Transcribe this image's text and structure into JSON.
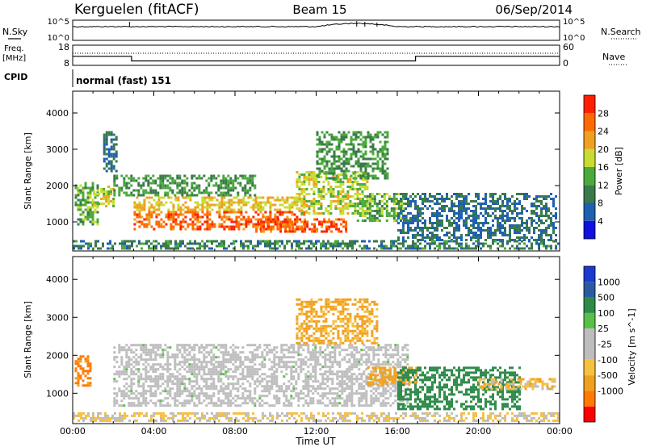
{
  "header": {
    "station": "Kerguelen (fitACF)",
    "beam": "Beam 15",
    "date": "06/Sep/2014"
  },
  "noise_panel": {
    "left_label": "N.Sky",
    "right_label": "N.Search",
    "tick_top": "10^5",
    "tick_bottom": "10^0"
  },
  "freq_panel": {
    "left_label_1": "Freq.",
    "left_label_2": "[MHz]",
    "left_tick_top": "18",
    "left_tick_bottom": "8",
    "right_label": "Nave",
    "right_tick_top": "60",
    "right_tick_bottom": "0"
  },
  "cpid": {
    "label": "CPID",
    "value": "normal (fast) 151"
  },
  "colors": {
    "power_scale": [
      "#1010e0",
      "#2060b0",
      "#3a7a4a",
      "#4caa3c",
      "#c8dc32",
      "#f0a020",
      "#ff6a00",
      "#ff2000"
    ],
    "velocity_scale": [
      "#ff0000",
      "#ff7a00",
      "#f0a020",
      "#f6c040",
      "#bdbdbd",
      "#bdbdbd",
      "#58c048",
      "#2f8a4a",
      "#2a5aa0",
      "#1a3ad0"
    ],
    "ground_scatter": "#bdbdbd"
  },
  "chart_data": [
    {
      "type": "heatmap",
      "name": "power",
      "xlabel": "",
      "ylabel": "Slant Range [km]",
      "xlim": [
        0,
        24
      ],
      "ylim": [
        200,
        4600
      ],
      "yticks": [
        "1000",
        "2000",
        "3000",
        "4000"
      ],
      "colorbar": {
        "label": "Power [dB]",
        "ticks": [
          "4",
          "8",
          "12",
          "16",
          "20",
          "24",
          "28"
        ],
        "range": [
          0,
          32
        ]
      },
      "scatter_regions": [
        {
          "t_start": 0.1,
          "t_end": 1.2,
          "r_start": 900,
          "r_end": 2100,
          "value": 14
        },
        {
          "t_start": 1.0,
          "t_end": 2.0,
          "r_start": 1400,
          "r_end": 2000,
          "value": 18
        },
        {
          "t_start": 1.5,
          "t_end": 2.2,
          "r_start": 2400,
          "r_end": 3500,
          "value": 8
        },
        {
          "t_start": 2.0,
          "t_end": 9.0,
          "r_start": 1700,
          "r_end": 2300,
          "value": 12
        },
        {
          "t_start": 3.0,
          "t_end": 11.5,
          "r_start": 800,
          "r_end": 1300,
          "value": 26
        },
        {
          "t_start": 3.0,
          "t_end": 11.5,
          "r_start": 1300,
          "r_end": 1700,
          "value": 20
        },
        {
          "t_start": 9.0,
          "t_end": 13.5,
          "r_start": 700,
          "r_end": 1100,
          "value": 27
        },
        {
          "t_start": 11.0,
          "t_end": 14.5,
          "r_start": 1200,
          "r_end": 2400,
          "value": 18
        },
        {
          "t_start": 12.0,
          "t_end": 15.5,
          "r_start": 2200,
          "r_end": 3500,
          "value": 12
        },
        {
          "t_start": 14.0,
          "t_end": 16.5,
          "r_start": 1000,
          "r_end": 1800,
          "value": 14
        },
        {
          "t_start": 16.0,
          "t_end": 23.8,
          "r_start": 500,
          "r_end": 1800,
          "value": 8
        },
        {
          "t_start": 0.0,
          "t_end": 24.0,
          "r_start": 250,
          "r_end": 500,
          "value": 10
        }
      ]
    },
    {
      "type": "heatmap",
      "name": "velocity",
      "xlabel": "Time UT",
      "ylabel": "Slant Range [km]",
      "xlim": [
        0,
        24
      ],
      "ylim": [
        200,
        4600
      ],
      "xticks": [
        "00:00",
        "04:00",
        "08:00",
        "12:00",
        "16:00",
        "20:00",
        "00:00"
      ],
      "yticks": [
        "1000",
        "2000",
        "3000",
        "4000"
      ],
      "colorbar": {
        "label": "Velocity [m s^-1]",
        "ticks": [
          "1000",
          "500",
          "100",
          "25",
          "-25",
          "-100",
          "-500",
          "-1000"
        ]
      },
      "scatter_regions": [
        {
          "t_start": 0.1,
          "t_end": 0.9,
          "r_start": 1200,
          "r_end": 2000,
          "value": -400
        },
        {
          "t_start": 2.0,
          "t_end": 16.5,
          "r_start": 700,
          "r_end": 2300,
          "value": 0
        },
        {
          "t_start": 11.0,
          "t_end": 15.0,
          "r_start": 2300,
          "r_end": 3500,
          "value": -120
        },
        {
          "t_start": 14.5,
          "t_end": 17.0,
          "r_start": 1200,
          "r_end": 1700,
          "value": -150
        },
        {
          "t_start": 16.0,
          "t_end": 22.0,
          "r_start": 600,
          "r_end": 1700,
          "value": 200
        },
        {
          "t_start": 20.0,
          "t_end": 23.8,
          "r_start": 1100,
          "r_end": 1400,
          "value": -80
        },
        {
          "t_start": 0.0,
          "t_end": 24.0,
          "r_start": 250,
          "r_end": 500,
          "value": -60
        }
      ]
    },
    {
      "type": "line",
      "name": "frequency",
      "ylabel": "Freq. [MHz]",
      "x": [
        0,
        2.9,
        2.9,
        16.9,
        16.9,
        24
      ],
      "values": [
        12.5,
        12.5,
        10.2,
        10.2,
        12.5,
        12.5
      ],
      "ylim": [
        8,
        18
      ]
    }
  ]
}
